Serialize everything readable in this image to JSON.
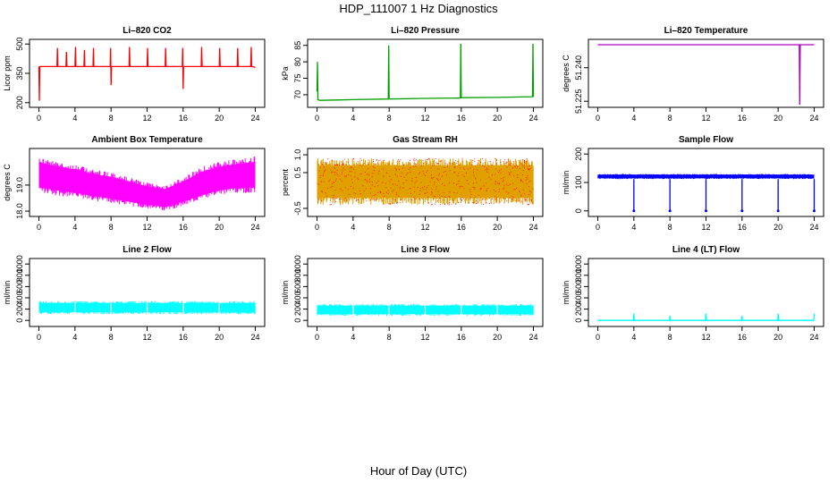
{
  "figure": {
    "title": "HDP_111007  1 Hz Diagnostics",
    "xlabel": "Hour of Day (UTC)"
  },
  "chart_data": [
    {
      "type": "line",
      "title": "Li–820 CO2",
      "ylabel": "Licor ppm",
      "color": "#ff0000",
      "xlim": [
        0,
        24
      ],
      "ylim": [
        190,
        510
      ],
      "xticks": [
        0,
        4,
        8,
        12,
        16,
        20,
        24
      ],
      "yticks": [
        200,
        350,
        500
      ],
      "ytick_labels": [
        "200",
        "350",
        "500"
      ],
      "series": [
        {
          "x": [
            0,
            0.05,
            0.1,
            2,
            2.05,
            2.1,
            3,
            3.05,
            3.1,
            4,
            4.05,
            4.1,
            5,
            5.05,
            5.1,
            6,
            6.05,
            6.1,
            7.9,
            7.95,
            8,
            8.05,
            8.1,
            10,
            10.05,
            10.1,
            12,
            12.05,
            12.1,
            14,
            14.05,
            14.1,
            15.9,
            15.95,
            16,
            16.05,
            16.1,
            18,
            18.05,
            18.1,
            20,
            20.05,
            20.1,
            22,
            22.05,
            22.1,
            23.5,
            23.55,
            23.6,
            24
          ],
          "y": [
            385,
            210,
            385,
            385,
            480,
            385,
            385,
            460,
            385,
            385,
            485,
            385,
            385,
            470,
            385,
            385,
            480,
            385,
            385,
            480,
            290,
            385,
            385,
            385,
            485,
            385,
            385,
            480,
            385,
            385,
            480,
            385,
            385,
            480,
            270,
            385,
            385,
            385,
            485,
            385,
            385,
            480,
            385,
            385,
            480,
            385,
            385,
            485,
            385,
            380
          ]
        }
      ]
    },
    {
      "type": "line",
      "title": "Li–820 Pressure",
      "ylabel": "kPa",
      "color": "#00a000",
      "xlim": [
        0,
        24
      ],
      "ylim": [
        67,
        86
      ],
      "xticks": [
        0,
        4,
        8,
        12,
        16,
        20,
        24
      ],
      "yticks": [
        70,
        75,
        80,
        85
      ],
      "ytick_labels": [
        "70",
        "75",
        "80",
        "85"
      ],
      "series": [
        {
          "x": [
            0,
            0.05,
            0.1,
            0.3,
            4,
            7.9,
            7.95,
            8.0,
            12,
            15.9,
            15.95,
            16.0,
            20,
            23.9,
            23.95,
            24
          ],
          "y": [
            71,
            80,
            68.5,
            68.3,
            68.5,
            68.7,
            85,
            68.7,
            68.9,
            69.0,
            85.5,
            69.1,
            69.2,
            69.4,
            85.5,
            69.4
          ]
        }
      ]
    },
    {
      "type": "line",
      "title": "Li–820 Temperature",
      "ylabel": "degrees C",
      "color": "#b000c0",
      "xlim": [
        0,
        24
      ],
      "ylim": [
        51.2235,
        51.2515
      ],
      "xticks": [
        0,
        4,
        8,
        12,
        16,
        20,
        24
      ],
      "yticks": [
        51.225,
        51.24
      ],
      "ytick_labels": [
        "51.225",
        "51.240"
      ],
      "series": [
        {
          "x": [
            0,
            22.35,
            22.4,
            22.45,
            24
          ],
          "y": [
            51.2503,
            51.2503,
            51.2235,
            51.2503,
            51.2503
          ]
        }
      ]
    },
    {
      "type": "line",
      "title": "Ambient Box Temperature",
      "ylabel": "degrees C",
      "color": "#ff00ff",
      "xlim": [
        0,
        24
      ],
      "ylim": [
        17.9,
        20.3
      ],
      "xticks": [
        0,
        4,
        8,
        12,
        16,
        20,
        24
      ],
      "yticks": [
        18,
        19
      ],
      "ytick_labels": [
        "18.0",
        "19.0"
      ],
      "band": {
        "x": [
          0,
          2,
          4,
          6,
          8,
          10,
          12,
          14,
          16,
          18,
          20,
          22,
          24
        ],
        "upper": [
          20.1,
          19.9,
          19.8,
          19.6,
          19.5,
          19.3,
          19.1,
          19.0,
          19.3,
          19.7,
          19.9,
          20.0,
          20.1
        ],
        "lower": [
          18.7,
          18.6,
          18.5,
          18.4,
          18.3,
          18.2,
          18.1,
          18.0,
          18.2,
          18.4,
          18.6,
          18.7,
          18.7
        ]
      }
    },
    {
      "type": "line",
      "title": "Gas Stream RH",
      "ylabel": "percent",
      "color": "#e0a000",
      "secondary_color": "#ff0000",
      "xlim": [
        0,
        24
      ],
      "ylim": [
        -0.65,
        1.1
      ],
      "xticks": [
        0,
        4,
        8,
        12,
        16,
        20,
        24
      ],
      "yticks": [
        -0.5,
        0.5,
        1.0
      ],
      "ytick_labels": [
        "-0.5",
        "0.5",
        "1.0"
      ],
      "band": {
        "x": [
          0,
          24
        ],
        "upper": [
          0.9,
          0.9
        ],
        "lower": [
          -0.4,
          -0.4
        ]
      }
    },
    {
      "type": "line",
      "title": "Sample Flow",
      "ylabel": "ml/min",
      "color": "#0000ff",
      "xlim": [
        0,
        24
      ],
      "ylim": [
        -10,
        210
      ],
      "xticks": [
        0,
        4,
        8,
        12,
        16,
        20,
        24
      ],
      "yticks": [
        0,
        100,
        200
      ],
      "ytick_labels": [
        "0",
        "100",
        "200"
      ],
      "band": {
        "x": [
          0,
          24
        ],
        "upper": [
          130,
          130
        ],
        "lower": [
          112,
          112
        ]
      },
      "dips": [
        4,
        8,
        12,
        16,
        20,
        24
      ]
    },
    {
      "type": "line",
      "title": "Line 2 Flow",
      "ylabel": "ml/min",
      "color": "#00ffff",
      "xlim": [
        0,
        24
      ],
      "ylim": [
        -60,
        1050
      ],
      "xticks": [
        0,
        4,
        8,
        12,
        16,
        20,
        24
      ],
      "yticks": [
        0,
        200,
        400,
        600,
        800,
        1000
      ],
      "ytick_labels": [
        "0",
        "200",
        "400",
        "600",
        "800",
        "1000"
      ],
      "band": {
        "x": [
          0,
          24
        ],
        "upper": [
          340,
          340
        ],
        "lower": [
          110,
          110
        ]
      },
      "gaps": [
        4,
        8,
        12,
        16,
        20
      ]
    },
    {
      "type": "line",
      "title": "Line 3 Flow",
      "ylabel": "ml/min",
      "color": "#00ffff",
      "xlim": [
        0,
        24
      ],
      "ylim": [
        -60,
        1050
      ],
      "xticks": [
        0,
        4,
        8,
        12,
        16,
        20,
        24
      ],
      "yticks": [
        0,
        200,
        400,
        600,
        800,
        1000
      ],
      "ytick_labels": [
        "0",
        "200",
        "400",
        "600",
        "800",
        "1000"
      ],
      "band": {
        "x": [
          0,
          24
        ],
        "upper": [
          290,
          290
        ],
        "lower": [
          80,
          80
        ]
      },
      "gaps": [
        4,
        8,
        12,
        16,
        20
      ]
    },
    {
      "type": "line",
      "title": "Line 4 (LT) Flow",
      "ylabel": "ml/min",
      "color": "#00ffff",
      "xlim": [
        0,
        24
      ],
      "ylim": [
        -60,
        1050
      ],
      "xticks": [
        0,
        4,
        8,
        12,
        16,
        20,
        24
      ],
      "yticks": [
        0,
        200,
        400,
        600,
        800,
        1000
      ],
      "ytick_labels": [
        "0",
        "200",
        "400",
        "600",
        "800",
        "1000"
      ],
      "series": [
        {
          "x": [
            0,
            3.95,
            4.0,
            4.05,
            7.95,
            8.0,
            8.05,
            11.95,
            12.0,
            12.05,
            15.95,
            16.0,
            16.05,
            19.95,
            20.0,
            20.05,
            23.95,
            24.0
          ],
          "y": [
            0,
            0,
            120,
            0,
            0,
            80,
            0,
            0,
            120,
            0,
            0,
            80,
            0,
            0,
            120,
            0,
            0,
            120
          ]
        }
      ]
    }
  ]
}
